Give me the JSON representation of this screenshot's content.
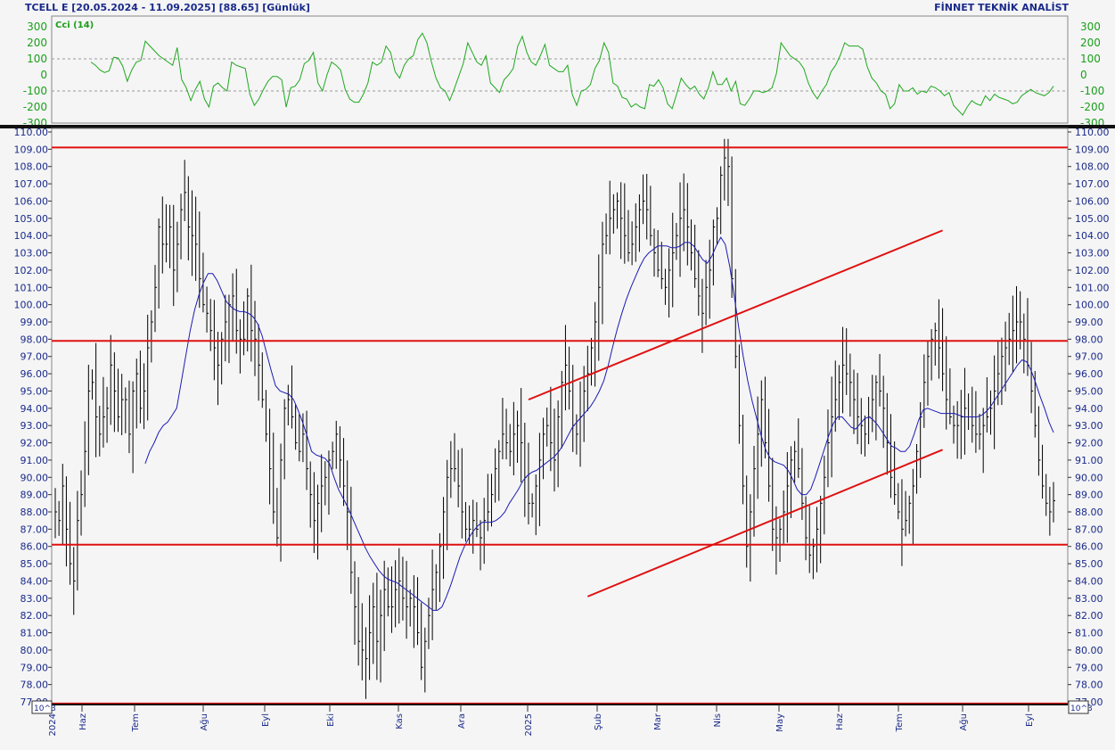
{
  "header": {
    "title": "TCELL E  [20.05.2024 - 11.09.2025]  [88.65]  [Günlük]",
    "brand": "FİNNET TEKNİK ANALİST"
  },
  "colors": {
    "price_bars": "#000000",
    "moving_average": "#1c1cb4",
    "cci": "#1fa81f",
    "levels_and_channel": "#e01010",
    "axis_text": "#1a2a8a",
    "background": "#f5f5f5"
  },
  "chart_data": [
    {
      "type": "line",
      "title": "",
      "indicator_label": "Cci (14)",
      "y_ticks": [
        300,
        200,
        100,
        0,
        -100,
        -200,
        -300
      ],
      "ylim": [
        -300,
        300
      ],
      "reference_lines": [
        100,
        -100
      ],
      "series": [
        {
          "name": "Cci (14)",
          "values": [
            80,
            60,
            30,
            15,
            25,
            110,
            105,
            55,
            -40,
            30,
            80,
            90,
            210,
            180,
            150,
            120,
            100,
            80,
            60,
            170,
            -30,
            -80,
            -160,
            -90,
            -40,
            -150,
            -200,
            -70,
            -50,
            -80,
            -100,
            80,
            60,
            50,
            40,
            -120,
            -190,
            -150,
            -90,
            -40,
            -10,
            -10,
            -30,
            -200,
            -80,
            -70,
            -30,
            70,
            90,
            140,
            -50,
            -100,
            0,
            80,
            60,
            30,
            -90,
            -150,
            -170,
            -170,
            -120,
            -50,
            80,
            60,
            80,
            180,
            140,
            20,
            -20,
            60,
            100,
            120,
            220,
            260,
            200,
            80,
            -20,
            -80,
            -100,
            -160,
            -90,
            -10,
            70,
            200,
            140,
            80,
            60,
            120,
            -50,
            -80,
            -110,
            -30,
            0,
            40,
            180,
            240,
            140,
            80,
            60,
            120,
            190,
            60,
            40,
            20,
            20,
            60,
            -120,
            -190,
            -100,
            -90,
            -60,
            40,
            90,
            200,
            140,
            -50,
            -70,
            -140,
            -150,
            -200,
            -180,
            -200,
            -210,
            -60,
            -70,
            -30,
            -80,
            -180,
            -210,
            -120,
            -20,
            -60,
            -90,
            -70,
            -120,
            -150,
            -80,
            20,
            -60,
            -60,
            -20,
            -100,
            -40,
            -180,
            -190,
            -150,
            -100,
            -100,
            -110,
            -100,
            -80,
            10,
            200,
            160,
            120,
            100,
            80,
            40,
            -50,
            -110,
            -150,
            -100,
            -60,
            20,
            60,
            120,
            200,
            180,
            180,
            180,
            160,
            50,
            -20,
            -50,
            -100,
            -120,
            -210,
            -180,
            -60,
            -100,
            -100,
            -80,
            -120,
            -100,
            -110,
            -70,
            -80,
            -100,
            -130,
            -110,
            -190,
            -220,
            -250,
            -200,
            -160,
            -180,
            -190,
            -130,
            -160,
            -120,
            -140,
            -150,
            -160,
            -180,
            -170,
            -130,
            -110,
            -90,
            -110,
            -120,
            -130,
            -110,
            -70
          ]
        }
      ]
    },
    {
      "type": "bar",
      "title": "",
      "x_start_date": "20.05.2024",
      "x_end_date": "11.09.2025",
      "x_ticks": [
        "2024",
        "Haz",
        "Tem",
        "Ağu",
        "Eyl",
        "Eki",
        "Kas",
        "Ara",
        "2025",
        "Şub",
        "Mar",
        "Nis",
        "May",
        "Haz",
        "Tem",
        "Ağu",
        "Eyl"
      ],
      "y_ticks": [
        "110.00",
        "109.00",
        "108.00",
        "107.00",
        "106.00",
        "105.00",
        "104.00",
        "103.00",
        "102.00",
        "101.00",
        "100.00",
        "99.00",
        "98.00",
        "97.00",
        "96.00",
        "95.00",
        "94.00",
        "93.00",
        "92.00",
        "91.00",
        "90.00",
        "89.00",
        "88.00",
        "87.00",
        "86.00",
        "85.00",
        "84.00",
        "83.00",
        "82.00",
        "81.00",
        "80.00",
        "79.00",
        "78.00",
        "77.00"
      ],
      "ylim": [
        77,
        110
      ],
      "multiplier_label": "10^3",
      "last_value": 88.65,
      "horizontal_levels": [
        109.1,
        97.9,
        86.1,
        76.9
      ],
      "channel": {
        "upper": [
          [
            128,
            94.5
          ],
          [
            240,
            104.3
          ]
        ],
        "lower": [
          [
            144,
            83.1
          ],
          [
            240,
            91.6
          ]
        ]
      },
      "series": [
        {
          "name": "Close",
          "values": [
            88.0,
            87.5,
            89.5,
            87.0,
            85.0,
            84.0,
            87.5,
            89.0,
            91.5,
            95.0,
            95.5,
            93.5,
            92.5,
            93.5,
            94.0,
            96.5,
            95.0,
            93.5,
            94.5,
            94.5,
            92.5,
            95.0,
            96.0,
            94.0,
            95.0,
            97.5,
            99.0,
            101.0,
            104.5,
            103.5,
            103.5,
            104.5,
            102.0,
            103.5,
            105.5,
            106.5,
            104.5,
            104.0,
            103.5,
            101.5,
            100.0,
            99.5,
            98.5,
            97.5,
            96.5,
            98.0,
            99.0,
            100.0,
            100.5,
            98.5,
            98.0,
            98.0,
            100.5,
            98.5,
            98.0,
            96.5,
            94.5,
            92.5,
            90.5,
            88.0,
            86.5,
            91.0,
            94.0,
            94.5,
            93.5,
            92.0,
            91.5,
            92.5,
            90.5,
            89.0,
            87.5,
            88.5,
            89.5,
            90.0,
            91.0,
            91.5,
            92.5,
            91.0,
            89.5,
            88.0,
            84.5,
            82.5,
            80.5,
            80.0,
            79.5,
            81.0,
            82.5,
            80.5,
            82.0,
            83.5,
            82.5,
            82.5,
            83.5,
            84.0,
            83.0,
            82.5,
            83.0,
            82.5,
            81.0,
            79.0,
            80.5,
            82.0,
            83.5,
            84.5,
            86.0,
            88.0,
            90.0,
            90.5,
            90.5,
            89.5,
            88.0,
            87.0,
            87.0,
            87.5,
            87.0,
            86.5,
            87.5,
            88.0,
            89.0,
            90.5,
            91.5,
            92.5,
            92.0,
            91.5,
            92.5,
            93.0,
            92.0,
            90.0,
            88.5,
            88.5,
            89.5,
            91.0,
            92.5,
            93.0,
            92.0,
            91.0,
            93.5,
            95.5,
            96.5,
            95.0,
            93.0,
            92.5,
            93.5,
            95.0,
            96.0,
            97.5,
            99.0,
            101.0,
            103.5,
            104.0,
            105.0,
            105.5,
            106.0,
            105.0,
            104.0,
            103.0,
            103.5,
            104.5,
            105.5,
            106.0,
            105.5,
            104.0,
            103.0,
            102.0,
            101.5,
            101.0,
            102.0,
            103.0,
            104.0,
            105.0,
            105.5,
            104.5,
            103.0,
            101.5,
            100.5,
            99.5,
            101.0,
            102.0,
            104.5,
            105.0,
            107.5,
            108.5,
            108.0,
            101.5,
            97.0,
            93.0,
            89.5,
            86.0,
            88.0,
            90.5,
            92.5,
            94.5,
            92.0,
            89.5,
            87.0,
            86.5,
            87.0,
            88.0,
            89.5,
            91.0,
            91.5,
            90.5,
            88.5,
            86.5,
            85.5,
            86.0,
            87.0,
            88.5,
            90.0,
            92.0,
            93.5,
            94.5,
            95.5,
            96.5,
            96.0,
            95.5,
            94.5,
            93.5,
            93.0,
            92.5,
            93.5,
            94.5,
            95.5,
            95.0,
            94.0,
            92.0,
            90.0,
            89.0,
            88.0,
            87.0,
            87.5,
            88.5,
            89.5,
            91.5,
            93.5,
            95.5,
            97.0,
            98.0,
            98.5,
            97.5,
            96.0,
            94.5,
            93.5,
            93.0,
            93.0,
            93.5,
            94.0,
            93.5,
            93.0,
            92.5,
            92.5,
            93.0,
            93.5,
            94.0,
            95.0,
            96.0,
            97.0,
            97.5,
            98.0,
            98.5,
            99.0,
            99.0,
            98.0,
            96.5,
            95.0,
            93.0,
            91.0,
            89.5,
            88.5,
            88.0,
            88.65
          ]
        },
        {
          "name": "Moving Average",
          "values": [
            null,
            null,
            null,
            null,
            null,
            null,
            null,
            null,
            null,
            null,
            null,
            null,
            null,
            null,
            null,
            null,
            null,
            null,
            null,
            null,
            90.8,
            91.5,
            92.0,
            92.6,
            93.0,
            93.2,
            93.6,
            94.0,
            95.5,
            97.0,
            98.5,
            99.7,
            100.6,
            101.3,
            101.8,
            101.8,
            101.4,
            100.8,
            100.2,
            99.9,
            99.7,
            99.6,
            99.6,
            99.5,
            99.3,
            98.9,
            98.2,
            97.2,
            96.2,
            95.3,
            95.0,
            94.9,
            94.8,
            94.5,
            93.9,
            93.2,
            92.4,
            91.5,
            91.3,
            91.2,
            91.1,
            90.8,
            90.0,
            89.3,
            88.8,
            88.3,
            87.7,
            87.1,
            86.5,
            85.9,
            85.4,
            85.0,
            84.6,
            84.3,
            84.1,
            84.0,
            83.9,
            83.7,
            83.5,
            83.3,
            83.1,
            82.9,
            82.7,
            82.5,
            82.3,
            82.3,
            82.5,
            83.1,
            83.8,
            84.6,
            85.4,
            86.0,
            86.5,
            86.9,
            87.2,
            87.4,
            87.4,
            87.4,
            87.5,
            87.7,
            88.0,
            88.5,
            88.9,
            89.3,
            89.8,
            90.1,
            90.3,
            90.4,
            90.6,
            90.8,
            91.0,
            91.2,
            91.5,
            91.9,
            92.4,
            92.9,
            93.2,
            93.5,
            93.8,
            94.1,
            94.5,
            95.0,
            95.6,
            96.5,
            97.6,
            98.6,
            99.5,
            100.3,
            101.0,
            101.6,
            102.2,
            102.7,
            103.0,
            103.2,
            103.4,
            103.4,
            103.4,
            103.3,
            103.3,
            103.4,
            103.6,
            103.6,
            103.4,
            103.0,
            102.6,
            102.4,
            102.8,
            103.4,
            103.9,
            103.5,
            102.2,
            100.5,
            98.7,
            97.0,
            95.6,
            94.4,
            93.4,
            92.4,
            91.6,
            91.1,
            90.9,
            90.8,
            90.7,
            90.4,
            89.9,
            89.3,
            89.0,
            89.0,
            89.3,
            90.0,
            90.8,
            91.6,
            92.4,
            93.1,
            93.5,
            93.5,
            93.2,
            92.9,
            92.8,
            93.1,
            93.4,
            93.5,
            93.3,
            93.0,
            92.6,
            92.2,
            91.8,
            91.7,
            91.5,
            91.5,
            91.8,
            92.5,
            93.3,
            93.9,
            94.0,
            93.9,
            93.8,
            93.7,
            93.7,
            93.7,
            93.7,
            93.6,
            93.5,
            93.5,
            93.5,
            93.5,
            93.6,
            93.8,
            94.1,
            94.5,
            94.9,
            95.3,
            95.7,
            96.1,
            96.5,
            96.8,
            96.7,
            96.2,
            95.5,
            94.7,
            94.0,
            93.2,
            92.6
          ]
        }
      ]
    }
  ]
}
